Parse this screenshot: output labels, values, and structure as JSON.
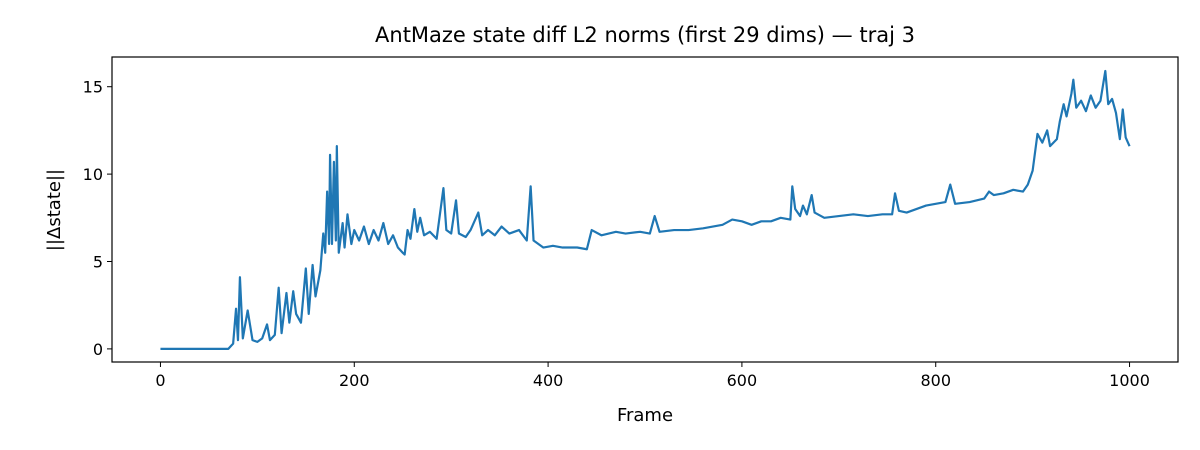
{
  "chart_data": {
    "type": "line",
    "title": "AntMaze state diff L2 norms (first 29 dims) — traj 3",
    "xlabel": "Frame",
    "ylabel": "||Δstate||",
    "xlim": [
      -50,
      1050
    ],
    "ylim": [
      -0.75,
      16.7
    ],
    "xticks": [
      0,
      200,
      400,
      600,
      800,
      1000
    ],
    "yticks": [
      0,
      5,
      10,
      15
    ],
    "grid": false,
    "series": [
      {
        "name": "traj 3",
        "color": "#1f77b4",
        "x": [
          0,
          70,
          75,
          78,
          80,
          82,
          85,
          90,
          95,
          100,
          105,
          110,
          113,
          118,
          122,
          125,
          130,
          133,
          137,
          140,
          145,
          150,
          153,
          157,
          160,
          165,
          168,
          170,
          172,
          174,
          175,
          177,
          179,
          181,
          182,
          184,
          188,
          190,
          193,
          197,
          200,
          205,
          210,
          215,
          220,
          225,
          230,
          235,
          240,
          245,
          250,
          252,
          255,
          258,
          262,
          265,
          268,
          272,
          278,
          285,
          292,
          295,
          300,
          305,
          308,
          315,
          320,
          328,
          332,
          338,
          345,
          352,
          360,
          370,
          378,
          382,
          385,
          395,
          405,
          415,
          430,
          440,
          445,
          455,
          470,
          480,
          495,
          505,
          510,
          515,
          530,
          545,
          560,
          570,
          580,
          590,
          600,
          610,
          620,
          630,
          640,
          650,
          652,
          655,
          660,
          663,
          667,
          672,
          675,
          685,
          700,
          715,
          730,
          745,
          755,
          758,
          762,
          770,
          780,
          790,
          800,
          810,
          815,
          820,
          835,
          850,
          855,
          860,
          870,
          880,
          890,
          895,
          900,
          905,
          910,
          915,
          918,
          925,
          928,
          932,
          935,
          940,
          942,
          945,
          950,
          955,
          960,
          965,
          970,
          975,
          978,
          982,
          986,
          990,
          993,
          996,
          1000
        ],
        "values": [
          0,
          0,
          0.3,
          2.3,
          0.5,
          4.1,
          0.6,
          2.2,
          0.5,
          0.4,
          0.6,
          1.4,
          0.5,
          0.8,
          3.5,
          0.9,
          3.2,
          1.5,
          3.3,
          2.0,
          1.5,
          4.6,
          2.0,
          4.8,
          3.0,
          4.5,
          6.6,
          5.5,
          9.0,
          6.0,
          11.1,
          6.0,
          10.7,
          6.2,
          11.6,
          5.5,
          7.2,
          5.8,
          7.7,
          6.0,
          6.8,
          6.2,
          7.0,
          6.0,
          6.8,
          6.2,
          7.2,
          6.0,
          6.5,
          5.8,
          5.5,
          5.4,
          6.8,
          6.3,
          8.0,
          6.7,
          7.5,
          6.5,
          6.7,
          6.3,
          9.2,
          6.8,
          6.6,
          8.5,
          6.6,
          6.4,
          6.8,
          7.8,
          6.5,
          6.8,
          6.5,
          7.0,
          6.6,
          6.8,
          6.2,
          9.3,
          6.2,
          5.8,
          5.9,
          5.8,
          5.8,
          5.7,
          6.8,
          6.5,
          6.7,
          6.6,
          6.7,
          6.6,
          7.6,
          6.7,
          6.8,
          6.8,
          6.9,
          7.0,
          7.1,
          7.4,
          7.3,
          7.1,
          7.3,
          7.3,
          7.5,
          7.4,
          9.3,
          8.0,
          7.6,
          8.2,
          7.7,
          8.8,
          7.8,
          7.5,
          7.6,
          7.7,
          7.6,
          7.7,
          7.7,
          8.9,
          7.9,
          7.8,
          8.0,
          8.2,
          8.3,
          8.4,
          9.4,
          8.3,
          8.4,
          8.6,
          9.0,
          8.8,
          8.9,
          9.1,
          9.0,
          9.4,
          10.2,
          12.3,
          11.8,
          12.5,
          11.6,
          12.0,
          13.0,
          14.0,
          13.3,
          14.6,
          15.4,
          13.8,
          14.2,
          13.6,
          14.5,
          13.8,
          14.2,
          15.9,
          14.0,
          14.3,
          13.5,
          12.0,
          13.7,
          12.1,
          11.6
        ]
      }
    ]
  }
}
